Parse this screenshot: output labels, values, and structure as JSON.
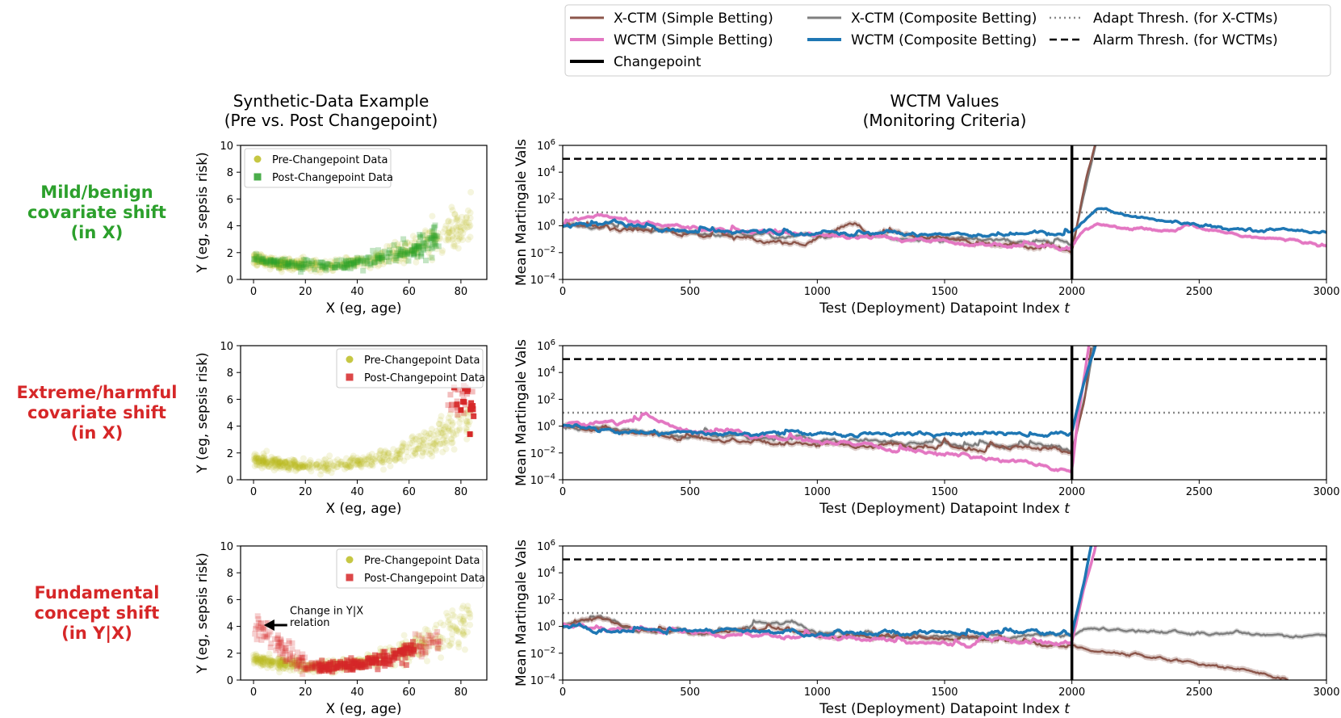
{
  "figure": {
    "left_column_title": [
      "Synthetic-Data Example",
      "(Pre vs. Post Changepoint)"
    ],
    "right_column_title": [
      "WCTM Values",
      "(Monitoring Criteria)"
    ],
    "colors": {
      "xctm_simple": "#8c564b",
      "wctm_simple": "#e377c2",
      "xctm_composite": "#7f7f7f",
      "wctm_composite": "#1f77b4",
      "changepoint": "#000000",
      "pre": "#bcbd22",
      "post_green": "#2ca02c",
      "post_red": "#d62728"
    }
  },
  "legend": {
    "entries": [
      {
        "label": "X-CTM (Simple Betting)",
        "key": "xctm_simple",
        "style": "solid"
      },
      {
        "label": "X-CTM (Composite Betting)",
        "key": "xctm_composite",
        "style": "solid"
      },
      {
        "label": "Adapt Thresh. (for X-CTMs)",
        "key": "adapt",
        "style": "dotted"
      },
      {
        "label": "WCTM (Simple Betting)",
        "key": "wctm_simple",
        "style": "solid"
      },
      {
        "label": "WCTM (Composite Betting)",
        "key": "wctm_composite",
        "style": "solid"
      },
      {
        "label": "Alarm Thresh. (for WCTMs)",
        "key": "alarm",
        "style": "dashed"
      },
      {
        "label": "Changepoint",
        "key": "changepoint",
        "style": "solid"
      }
    ]
  },
  "rows": [
    {
      "label": [
        "Mild/benign",
        "covariate shift",
        "(in X)"
      ],
      "label_color": "#2ca02c",
      "scatter_legend": [
        "Pre-Changepoint Data",
        "Post-Changepoint Data"
      ],
      "legend_position": "top-left",
      "post_color_key": "post_green",
      "post_mode": "green",
      "annotation": null
    },
    {
      "label": [
        "Extreme/harmful",
        "covariate shift",
        "(in X)"
      ],
      "label_color": "#d62728",
      "scatter_legend": [
        "Pre-Changepoint Data",
        "Post-Changepoint Data"
      ],
      "legend_position": "top-right",
      "post_color_key": "post_red",
      "post_mode": "extreme",
      "annotation": null
    },
    {
      "label": [
        "Fundamental",
        "concept shift",
        "(in Y|X)"
      ],
      "label_color": "#d62728",
      "scatter_legend": [
        "Pre-Changepoint Data",
        "Post-Changepoint Data"
      ],
      "legend_position": "top-right",
      "post_color_key": "post_red",
      "post_mode": "concept",
      "annotation": [
        "Change in Y|X",
        "relation"
      ]
    }
  ],
  "chart_data": [
    {
      "type": "scatter",
      "panel": "scatter",
      "xlabel": "X (eg, age)",
      "ylabel": "Y (eg, sepsis risk)",
      "xlim": [
        -5,
        90
      ],
      "ylim": [
        0,
        10
      ],
      "xticks": [
        0,
        20,
        40,
        60,
        80
      ],
      "yticks": [
        0,
        2,
        4,
        6,
        8,
        10
      ],
      "series": [
        {
          "name": "Pre-Changepoint Data",
          "trend": "y = 1 + 0.0012*(x-25)^2 (for x>25 slightly steeper)",
          "x_range": [
            0,
            85
          ]
        },
        {
          "name": "Post-Changepoint Data",
          "x_range_by_row": [
            [
              0,
              75
            ],
            [
              75,
              85
            ],
            [
              0,
              70
            ]
          ]
        }
      ]
    },
    {
      "type": "line",
      "panel": "martingale",
      "xlabel": "Test (Deployment) Datapoint Index",
      "xlabel_italic": "t",
      "ylabel": "Mean Martingale Vals",
      "xlim": [
        0,
        3000
      ],
      "ylim_log10": [
        -4,
        6
      ],
      "xticks": [
        0,
        500,
        1000,
        1500,
        2000,
        2500,
        3000
      ],
      "ytick_exponents": [
        -4,
        -2,
        0,
        2,
        4,
        6
      ],
      "ytick_base": "10",
      "changepoint": 2000,
      "adapt_threshold": 10,
      "alarm_threshold": 100000,
      "series_keypoints": [
        {
          "row": 1,
          "xctm_simple": [
            [
              0,
              0
            ],
            [
              200,
              -0.3
            ],
            [
              500,
              -0.6
            ],
            [
              800,
              -1.0
            ],
            [
              950,
              -1.4
            ],
            [
              1000,
              -0.8
            ],
            [
              1150,
              0.2
            ],
            [
              1200,
              -0.6
            ],
            [
              1500,
              -1.0
            ],
            [
              1800,
              -1.5
            ],
            [
              1950,
              -1.6
            ],
            [
              2000,
              -2.0
            ],
            [
              2050,
              3.0
            ],
            [
              2100,
              6.5
            ]
          ],
          "xctm_composite": [
            [
              0,
              0
            ],
            [
              500,
              -0.6
            ],
            [
              1000,
              -0.8
            ],
            [
              1500,
              -1.0
            ],
            [
              1950,
              -1.2
            ],
            [
              2000,
              -1.6
            ],
            [
              2050,
              2.5
            ],
            [
              2100,
              6.5
            ]
          ],
          "wctm_simple": [
            [
              0,
              0
            ],
            [
              100,
              0.8
            ],
            [
              250,
              0.3
            ],
            [
              500,
              -0.2
            ],
            [
              1000,
              -0.7
            ],
            [
              1500,
              -1.2
            ],
            [
              1950,
              -1.8
            ],
            [
              2000,
              -1.5
            ],
            [
              2050,
              -0.3
            ],
            [
              2100,
              0
            ],
            [
              2400,
              -0.5
            ],
            [
              2450,
              0
            ],
            [
              2700,
              -0.8
            ],
            [
              3000,
              -1.4
            ]
          ],
          "wctm_composite": [
            [
              0,
              0
            ],
            [
              200,
              0.2
            ],
            [
              500,
              -0.4
            ],
            [
              1000,
              -0.5
            ],
            [
              1500,
              -0.6
            ],
            [
              1950,
              -0.6
            ],
            [
              2000,
              -0.5
            ],
            [
              2100,
              1.3
            ],
            [
              2300,
              0.5
            ],
            [
              2600,
              -0.2
            ],
            [
              3000,
              -0.4
            ]
          ]
        },
        {
          "row": 2,
          "xctm_simple": [
            [
              0,
              0
            ],
            [
              300,
              -0.5
            ],
            [
              600,
              -1.0
            ],
            [
              1000,
              -1.3
            ],
            [
              1300,
              -1.5
            ],
            [
              1700,
              -1.8
            ],
            [
              1850,
              -1.6
            ],
            [
              1950,
              -1.8
            ],
            [
              2000,
              -2.0
            ],
            [
              2050,
              2.0
            ],
            [
              2080,
              6.5
            ]
          ],
          "xctm_composite": [
            [
              0,
              0
            ],
            [
              500,
              -0.7
            ],
            [
              1000,
              -1.0
            ],
            [
              1500,
              -1.3
            ],
            [
              1950,
              -1.6
            ],
            [
              2000,
              -2.0
            ],
            [
              2060,
              3.0
            ],
            [
              2090,
              6.5
            ]
          ],
          "wctm_simple": [
            [
              0,
              0
            ],
            [
              170,
              0.3
            ],
            [
              350,
              0.5
            ],
            [
              500,
              -0.3
            ],
            [
              1000,
              -1.2
            ],
            [
              1500,
              -2.1
            ],
            [
              1800,
              -2.6
            ],
            [
              2000,
              -3.5
            ],
            [
              2020,
              0
            ],
            [
              2070,
              6.5
            ]
          ],
          "wctm_composite": [
            [
              0,
              0
            ],
            [
              300,
              -0.5
            ],
            [
              600,
              -0.6
            ],
            [
              1500,
              -0.6
            ],
            [
              2000,
              -0.6
            ],
            [
              2050,
              3.5
            ],
            [
              2100,
              6.5
            ]
          ]
        },
        {
          "row": 3,
          "xctm_simple": [
            [
              0,
              0
            ],
            [
              150,
              0.6
            ],
            [
              300,
              -0.3
            ],
            [
              600,
              -0.5
            ],
            [
              900,
              -0.2
            ],
            [
              1000,
              -0.6
            ],
            [
              1300,
              -0.9
            ],
            [
              1600,
              -1.0
            ],
            [
              1950,
              -1.4
            ],
            [
              2000,
              -1.5
            ],
            [
              2100,
              -1.8
            ],
            [
              2400,
              -2.5
            ],
            [
              2700,
              -3.3
            ],
            [
              2850,
              -4.0
            ]
          ],
          "xctm_composite": [
            [
              0,
              0
            ],
            [
              150,
              0.8
            ],
            [
              300,
              -0.3
            ],
            [
              600,
              -0.4
            ],
            [
              900,
              0.3
            ],
            [
              1000,
              -0.5
            ],
            [
              1500,
              -0.8
            ],
            [
              2000,
              -0.7
            ],
            [
              2050,
              -0.3
            ],
            [
              2100,
              -0.2
            ],
            [
              2300,
              -0.4
            ],
            [
              3000,
              -0.7
            ]
          ],
          "wctm_simple": [
            [
              0,
              0
            ],
            [
              300,
              -0.3
            ],
            [
              600,
              -0.5
            ],
            [
              1000,
              -0.8
            ],
            [
              1500,
              -1.3
            ],
            [
              1600,
              -1.6
            ],
            [
              1650,
              -0.9
            ],
            [
              1950,
              -1.2
            ],
            [
              2000,
              -1.2
            ],
            [
              2050,
              3.0
            ],
            [
              2100,
              6.5
            ]
          ],
          "wctm_composite": [
            [
              0,
              0
            ],
            [
              150,
              -0.4
            ],
            [
              300,
              -0.3
            ],
            [
              600,
              -0.4
            ],
            [
              1000,
              -0.5
            ],
            [
              1500,
              -0.4
            ],
            [
              2000,
              -0.6
            ],
            [
              2050,
              3.5
            ],
            [
              2080,
              6.5
            ]
          ]
        }
      ]
    }
  ]
}
